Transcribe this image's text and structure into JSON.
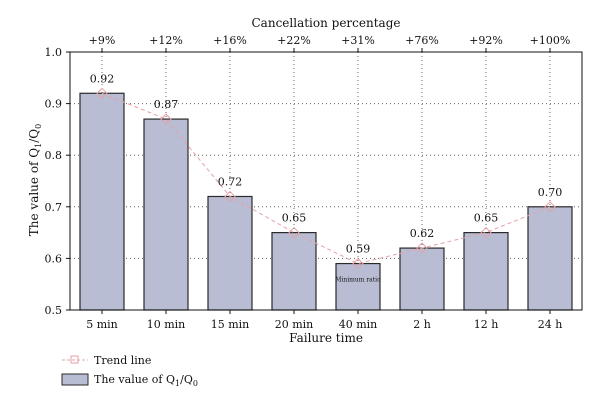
{
  "chart_data": {
    "type": "bar",
    "xlabel": "Failure time",
    "ylabel": "The value of Q₁/Q₀",
    "top_axis_label": "Cancellation percentage",
    "categories": [
      "5 min",
      "10 min",
      "15 min",
      "20 min",
      "40 min",
      "2 h",
      "12 h",
      "24 h"
    ],
    "top_labels": [
      "+9%",
      "+12%",
      "+16%",
      "+22%",
      "+31%",
      "+76%",
      "+92%",
      "+100%"
    ],
    "values": [
      0.92,
      0.87,
      0.72,
      0.65,
      0.59,
      0.62,
      0.65,
      0.7
    ],
    "value_labels": [
      "0.92",
      "0.87",
      "0.72",
      "0.65",
      "0.59",
      "0.62",
      "0.65",
      "0.70"
    ],
    "ylim": [
      0.5,
      1.0
    ],
    "yticks": [
      "0.5",
      "0.6",
      "0.7",
      "0.8",
      "0.9",
      "1.0"
    ],
    "grid": true,
    "annotation": {
      "category": "40 min",
      "text": "Minimum ratio"
    },
    "legend": {
      "position": "bottom-left",
      "entries": [
        {
          "label": "Trend line",
          "kind": "line",
          "color": "#e5a1a5"
        },
        {
          "label": "The value of Q₁/Q₀",
          "kind": "bar",
          "color": "#b9bdd4"
        }
      ]
    },
    "colors": {
      "bar_fill": "#b9bdd4",
      "bar_stroke": "#2a2a2a",
      "trend": "#e5a1a5",
      "grid": "#666666"
    }
  }
}
